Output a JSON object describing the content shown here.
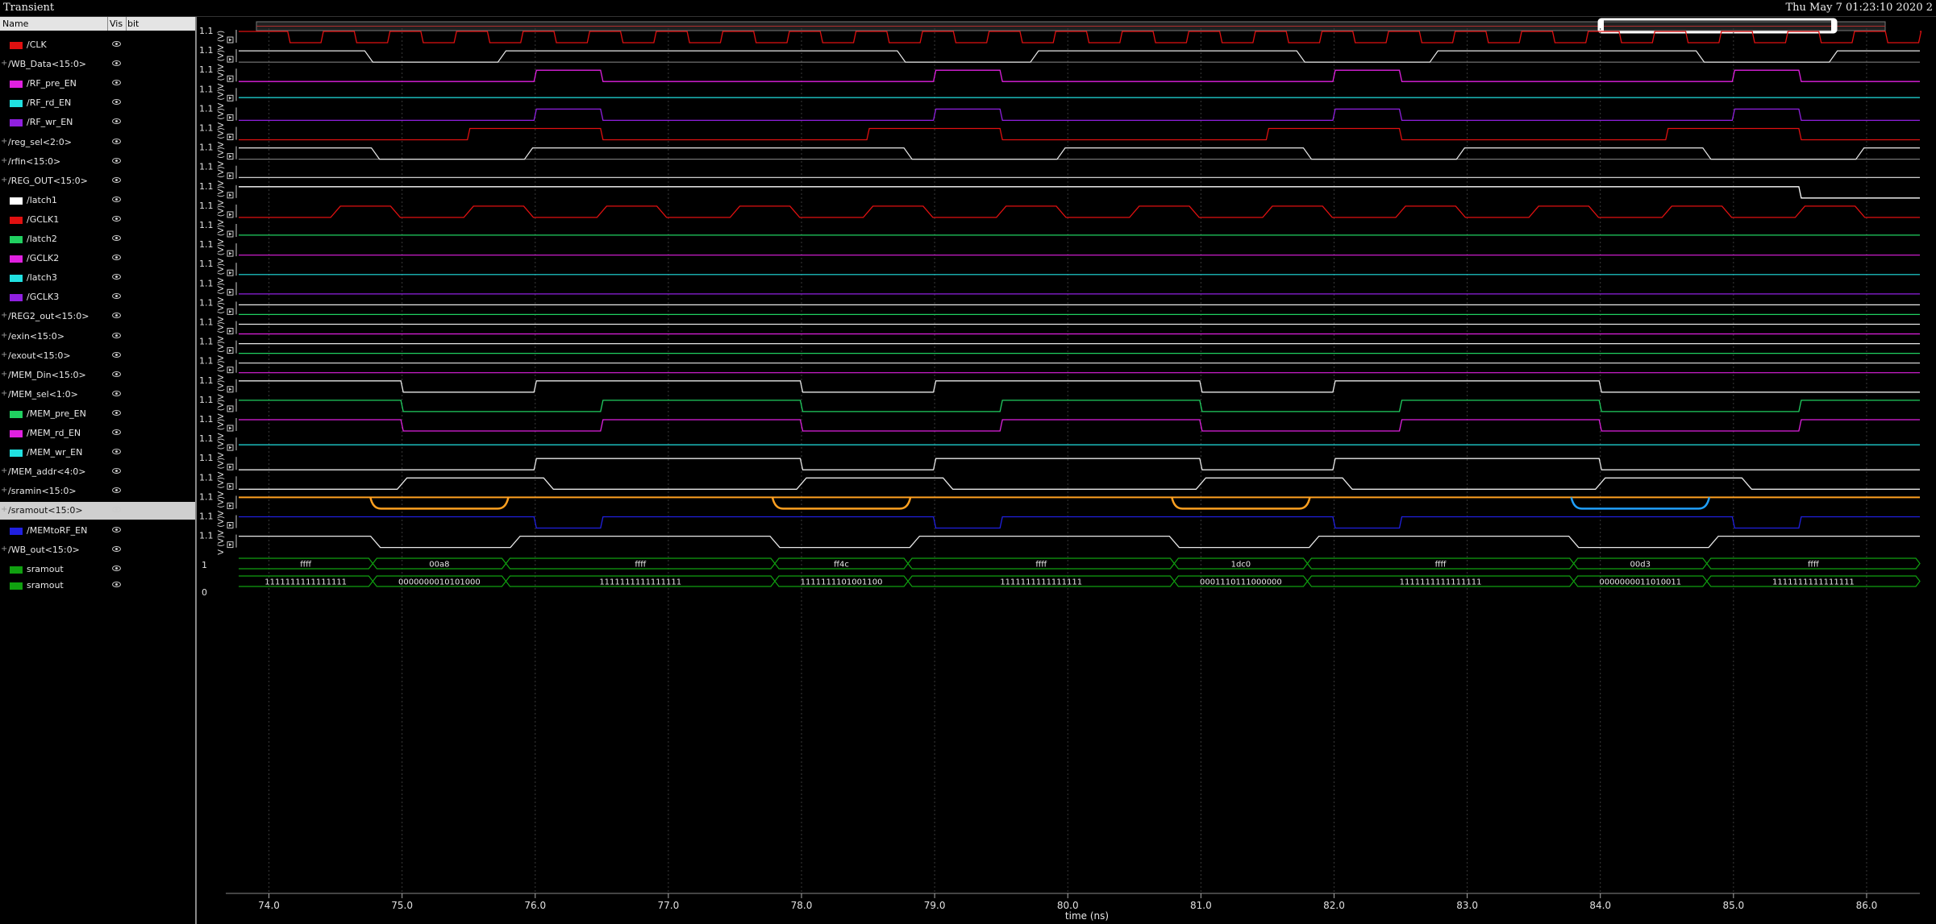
{
  "window": {
    "title": "Transient",
    "clock": "Thu May 7 01:23:10 2020  2"
  },
  "panel": {
    "col_name": "Name",
    "col_vis": "Vis",
    "col_bit": "bit"
  },
  "y_tick_high": "1.1",
  "y_unit_label": "V (V)",
  "bus_low_label": "0",
  "bus_high_label": "1",
  "xaxis": {
    "label": "time (ns)",
    "ticks": [
      "74.0",
      "75.0",
      "76.0",
      "77.0",
      "78.0",
      "79.0",
      "80.0",
      "81.0",
      "82.0",
      "83.0",
      "84.0",
      "85.0",
      "86.0"
    ]
  },
  "signals": [
    {
      "name": "/CLK",
      "color": "#e01010",
      "bus": false
    },
    {
      "name": "/WB_Data<15:0>",
      "color": "#e8e8e8",
      "bus": true
    },
    {
      "name": "/RF_pre_EN",
      "color": "#e020e0",
      "bus": false
    },
    {
      "name": "/RF_rd_EN",
      "color": "#20e0e0",
      "bus": false
    },
    {
      "name": "/RF_wr_EN",
      "color": "#9020e0",
      "bus": false
    },
    {
      "name": "/reg_sel<2:0>",
      "color": "#e01010",
      "bus": true
    },
    {
      "name": "/rfin<15:0>",
      "color": "#e8e8e8",
      "bus": true
    },
    {
      "name": "/REG_OUT<15:0>",
      "color": "#e8e8e8",
      "bus": true
    },
    {
      "name": "/latch1",
      "color": "#ffffff",
      "bus": false
    },
    {
      "name": "/GCLK1",
      "color": "#e01010",
      "bus": false
    },
    {
      "name": "/latch2",
      "color": "#20d060",
      "bus": false
    },
    {
      "name": "/GCLK2",
      "color": "#e020e0",
      "bus": false
    },
    {
      "name": "/latch3",
      "color": "#20e0e0",
      "bus": false
    },
    {
      "name": "/GCLK3",
      "color": "#9020e0",
      "bus": false
    },
    {
      "name": "/REG2_out<15:0>",
      "color": "#e8e8e8",
      "bus": true
    },
    {
      "name": "/exin<15:0>",
      "color": "#e8e8e8",
      "bus": true
    },
    {
      "name": "/exout<15:0>",
      "color": "#e8e8e8",
      "bus": true
    },
    {
      "name": "/MEM_Din<15:0>",
      "color": "#e8e8e8",
      "bus": true
    },
    {
      "name": "/MEM_sel<1:0>",
      "color": "#e8e8e8",
      "bus": true
    },
    {
      "name": "/MEM_pre_EN",
      "color": "#20d060",
      "bus": false
    },
    {
      "name": "/MEM_rd_EN",
      "color": "#e020e0",
      "bus": false
    },
    {
      "name": "/MEM_wr_EN",
      "color": "#20e0e0",
      "bus": false
    },
    {
      "name": "/MEM_addr<4:0>",
      "color": "#e8e8e8",
      "bus": true
    },
    {
      "name": "/sramin<15:0>",
      "color": "#e8e8e8",
      "bus": true
    },
    {
      "name": "/sramout<15:0>",
      "color": "#e8e8e8",
      "bus": true,
      "selected": true
    },
    {
      "name": "/MEMtoRF_EN",
      "color": "#2020e0",
      "bus": false
    },
    {
      "name": "/WB_out<15:0>",
      "color": "#e8e8e8",
      "bus": true
    },
    {
      "name": "sramout",
      "color": "#10a010",
      "bus": false
    },
    {
      "name": "sramout",
      "color": "#10a010",
      "bus": false
    }
  ],
  "bus_hex": {
    "segments": [
      {
        "from": 73.7,
        "to": 74.78,
        "label": "ffff"
      },
      {
        "from": 74.78,
        "to": 75.78,
        "label": "00a8"
      },
      {
        "from": 75.78,
        "to": 77.8,
        "label": "ffff"
      },
      {
        "from": 77.8,
        "to": 78.8,
        "label": "ff4c"
      },
      {
        "from": 78.8,
        "to": 80.8,
        "label": "ffff"
      },
      {
        "from": 80.8,
        "to": 81.8,
        "label": "1dc0"
      },
      {
        "from": 81.8,
        "to": 83.8,
        "label": "ffff"
      },
      {
        "from": 83.8,
        "to": 84.8,
        "label": "00d3"
      },
      {
        "from": 84.8,
        "to": 86.4,
        "label": "ffff"
      }
    ]
  },
  "bus_bin": {
    "segments": [
      {
        "from": 73.7,
        "to": 74.78,
        "label": "1111111111111111"
      },
      {
        "from": 74.78,
        "to": 75.78,
        "label": "0000000010101000"
      },
      {
        "from": 75.78,
        "to": 77.8,
        "label": "1111111111111111"
      },
      {
        "from": 77.8,
        "to": 78.8,
        "label": "1111111101001100"
      },
      {
        "from": 78.8,
        "to": 80.8,
        "label": "1111111111111111"
      },
      {
        "from": 80.8,
        "to": 81.8,
        "label": "0001110111000000"
      },
      {
        "from": 81.8,
        "to": 83.8,
        "label": "1111111111111111"
      },
      {
        "from": 83.8,
        "to": 84.8,
        "label": "0000000011010011"
      },
      {
        "from": 84.8,
        "to": 86.4,
        "label": "1111111111111111"
      }
    ]
  }
}
